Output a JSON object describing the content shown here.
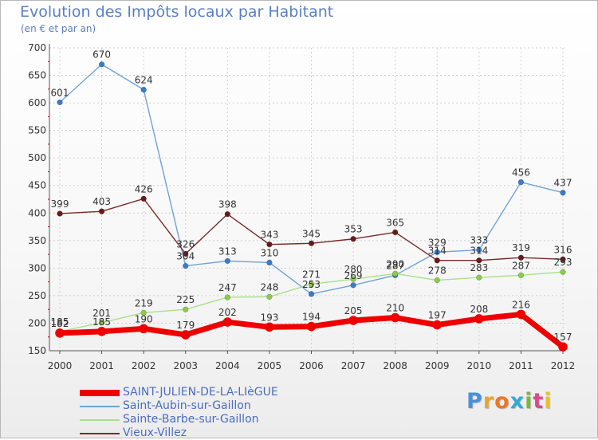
{
  "header": {
    "title": "Evolution des Impôts locaux par Habitant",
    "subtitle": "(en € et par an)"
  },
  "logo": {
    "text": "Proxiti",
    "colors": [
      "#4a8fd8",
      "#e8a630",
      "#e8782a",
      "#36a8d8",
      "#7ab83a",
      "#d84a8a",
      "#e8c030"
    ]
  },
  "colors": {
    "grid": "#cfcfcf",
    "axis": "#555555",
    "tick_mark": "#cc0000",
    "label": "#333333"
  },
  "chart_data": {
    "type": "line",
    "title": "Evolution des Impôts locaux par Habitant",
    "subtitle": "(en € et par an)",
    "x": [
      2000,
      2001,
      2002,
      2003,
      2004,
      2005,
      2006,
      2007,
      2008,
      2009,
      2010,
      2011,
      2012
    ],
    "x_tick_labels": [
      "2000",
      "2001",
      "2002",
      "2003",
      "2004",
      "2005",
      "2006",
      "2007",
      "2008",
      "2009",
      "2010",
      "2011",
      "2012"
    ],
    "y_ticks": [
      150,
      200,
      250,
      300,
      350,
      400,
      450,
      500,
      550,
      600,
      650,
      700
    ],
    "ylim": [
      150,
      700
    ],
    "grid": true,
    "legend_position": "bottom-left",
    "series": [
      {
        "name": "SAINT-JULIEN-DE-LA-LIèGUE",
        "color": "#ee0000",
        "marker": "#ee0000",
        "bold": true,
        "values": [
          182,
          185,
          190,
          179,
          202,
          193,
          194,
          205,
          210,
          197,
          208,
          216,
          157
        ]
      },
      {
        "name": "Saint-Aubin-sur-Gaillon",
        "color": "#6fa3d8",
        "marker": "#3a7cc8",
        "bold": false,
        "values": [
          601,
          670,
          624,
          304,
          313,
          310,
          253,
          269,
          287,
          329,
          333,
          456,
          437
        ]
      },
      {
        "name": "Sainte-Barbe-sur-Gaillon",
        "color": "#a8e08a",
        "marker": "#8acc4a",
        "bold": false,
        "values": [
          185,
          201,
          219,
          225,
          247,
          248,
          271,
          280,
          290,
          278,
          283,
          287,
          293
        ]
      },
      {
        "name": "Vieux-Villez",
        "color": "#7a2a2a",
        "marker": "#6a1a1a",
        "bold": false,
        "values": [
          399,
          403,
          426,
          326,
          398,
          343,
          345,
          353,
          365,
          314,
          314,
          319,
          316
        ]
      }
    ]
  }
}
